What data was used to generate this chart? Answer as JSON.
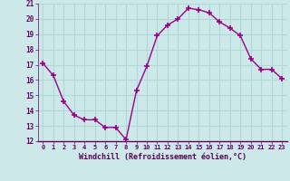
{
  "x": [
    0,
    1,
    2,
    3,
    4,
    5,
    6,
    7,
    8,
    9,
    10,
    11,
    12,
    13,
    14,
    15,
    16,
    17,
    18,
    19,
    20,
    21,
    22,
    23
  ],
  "y": [
    17.1,
    16.3,
    14.6,
    13.7,
    13.4,
    13.4,
    12.9,
    12.9,
    12.1,
    15.3,
    16.9,
    18.9,
    19.6,
    20.0,
    20.7,
    20.6,
    20.4,
    19.8,
    19.4,
    18.9,
    17.4,
    16.7,
    16.7,
    16.1
  ],
  "xlabel": "Windchill (Refroidissement éolien,°C)",
  "ylim": [
    12,
    21
  ],
  "xlim": [
    -0.5,
    23.5
  ],
  "yticks": [
    12,
    13,
    14,
    15,
    16,
    17,
    18,
    19,
    20,
    21
  ],
  "xticks": [
    0,
    1,
    2,
    3,
    4,
    5,
    6,
    7,
    8,
    9,
    10,
    11,
    12,
    13,
    14,
    15,
    16,
    17,
    18,
    19,
    20,
    21,
    22,
    23
  ],
  "line_color": "#990088",
  "marker_color": "#990088",
  "bg_color": "#cce8e8",
  "grid_color": "#b0d8d8",
  "tick_label_color": "#660066",
  "axis_label_color": "#550055"
}
